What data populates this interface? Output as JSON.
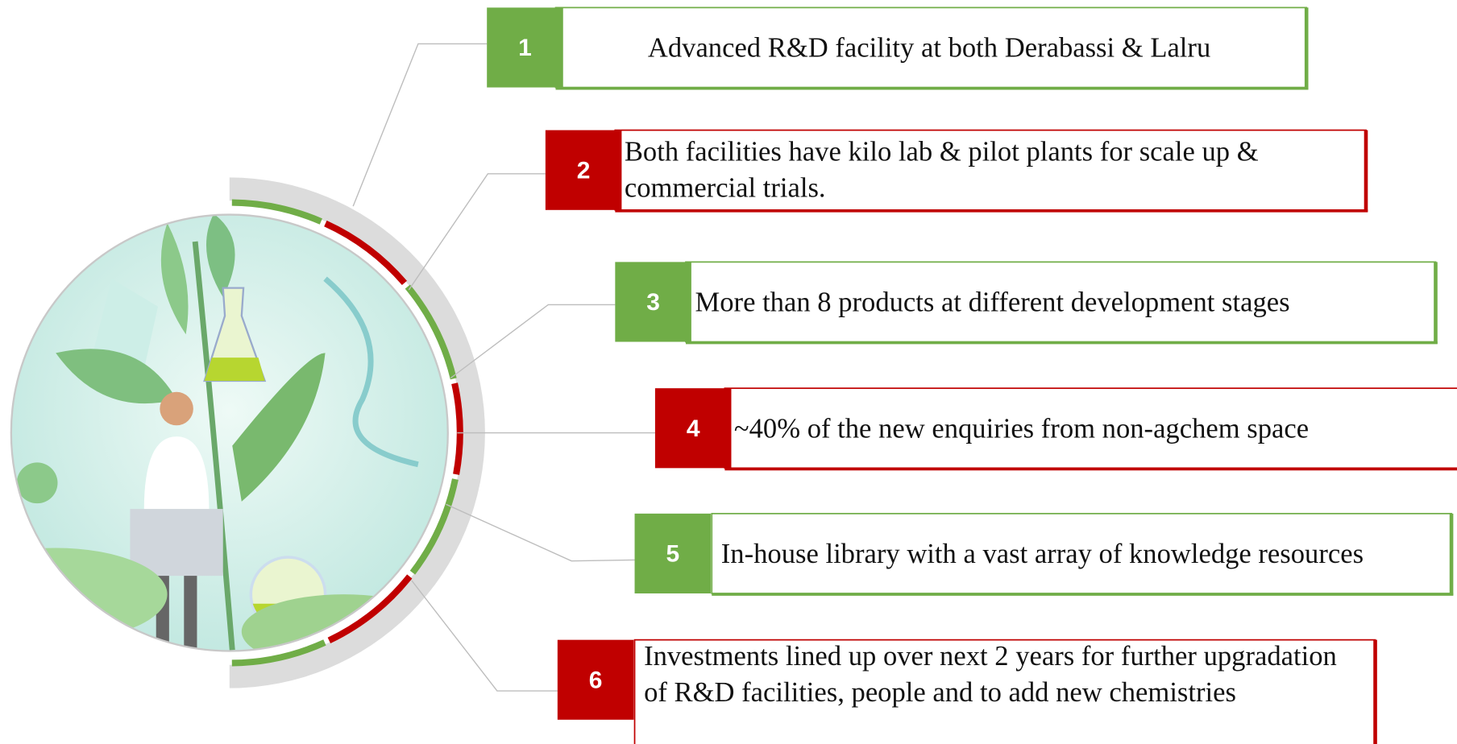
{
  "items": [
    {
      "number": "1",
      "text": "Advanced R&D facility at both Derabassi & Lalru",
      "color": "#70ad47"
    },
    {
      "number": "2",
      "text": "Both facilities have kilo lab & pilot plants for scale up & commercial trials.",
      "color": "#c00000"
    },
    {
      "number": "3",
      "text": "More than 8 products at different development stages",
      "color": "#70ad47"
    },
    {
      "number": "4",
      "text": "~40% of the new enquiries from non-agchem space",
      "color": "#c00000"
    },
    {
      "number": "5",
      "text": "In-house library with a vast array of knowledge resources",
      "color": "#70ad47"
    },
    {
      "number": "6",
      "text": "Investments lined up over next 2 years for further upgradation of R&D facilities, people and to add new chemistries",
      "color": "#c00000"
    }
  ]
}
